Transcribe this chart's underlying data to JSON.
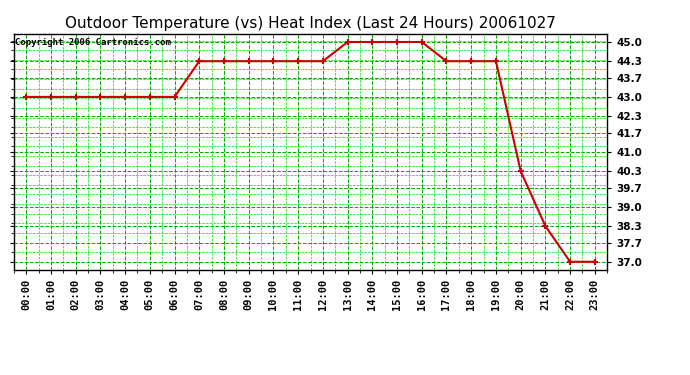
{
  "title": "Outdoor Temperature (vs) Heat Index (Last 24 Hours) 20061027",
  "copyright": "Copyright 2006 Cartronics.com",
  "x_labels": [
    "00:00",
    "01:00",
    "02:00",
    "03:00",
    "04:00",
    "05:00",
    "06:00",
    "07:00",
    "08:00",
    "09:00",
    "10:00",
    "11:00",
    "12:00",
    "13:00",
    "14:00",
    "15:00",
    "16:00",
    "17:00",
    "18:00",
    "19:00",
    "20:00",
    "21:00",
    "22:00",
    "23:00"
  ],
  "y_values": [
    43.0,
    43.0,
    43.0,
    43.0,
    43.0,
    43.0,
    43.0,
    44.3,
    44.3,
    44.3,
    44.3,
    44.3,
    44.3,
    45.0,
    45.0,
    45.0,
    45.0,
    44.3,
    44.3,
    44.3,
    40.3,
    38.3,
    37.0,
    37.0
  ],
  "line_color": "#cc0000",
  "marker_color": "#cc0000",
  "bg_color": "#ffffff",
  "plot_bg_color": "#ffffff",
  "grid_color_major": "#00aa00",
  "grid_color_minor": "#00dd00",
  "ylim_min": 36.7,
  "ylim_max": 45.3,
  "y_ticks": [
    37.0,
    37.7,
    38.3,
    39.0,
    39.7,
    40.3,
    41.0,
    41.7,
    42.3,
    43.0,
    43.7,
    44.3,
    45.0
  ],
  "title_fontsize": 11,
  "tick_fontsize": 7.5,
  "copyright_fontsize": 6.5
}
